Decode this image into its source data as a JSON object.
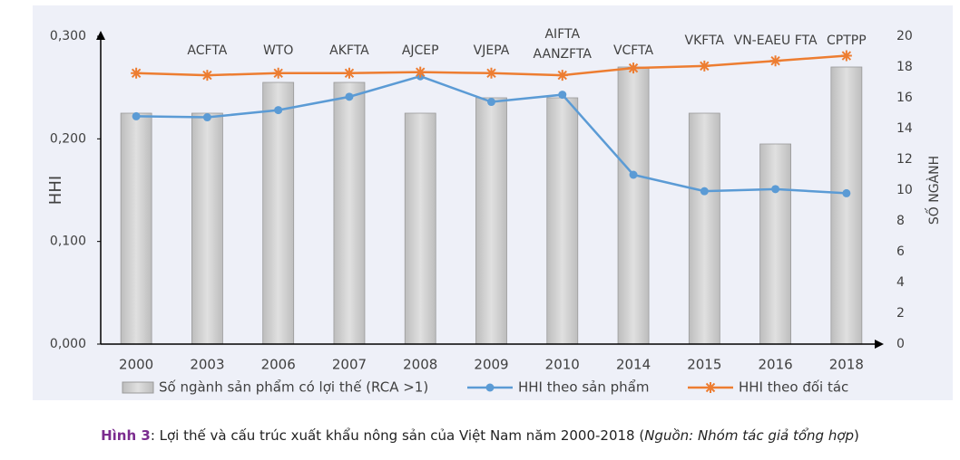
{
  "chart_data": {
    "type": "bar-line",
    "categories": [
      "2000",
      "2003",
      "2006",
      "2007",
      "2008",
      "2009",
      "2010",
      "2014",
      "2015",
      "2016",
      "2018"
    ],
    "series": [
      {
        "name": "Số ngành sản phẩm có lợi thế (RCA >1)",
        "type": "bar",
        "axis": "y2",
        "color": "#c9c9c9",
        "values": [
          15,
          15,
          17,
          17,
          15,
          16,
          16,
          18,
          15,
          13,
          18
        ]
      },
      {
        "name": "HHI theo sản phẩm",
        "type": "line",
        "marker": "circle",
        "color": "#5b9bd5",
        "values": [
          0.222,
          0.221,
          0.228,
          0.241,
          0.261,
          0.236,
          0.243,
          0.165,
          0.149,
          0.151,
          0.147
        ]
      },
      {
        "name": "HHI theo đối tác",
        "type": "line",
        "marker": "star",
        "color": "#ed7d31",
        "values": [
          0.264,
          0.262,
          0.264,
          0.264,
          0.265,
          0.264,
          0.262,
          0.269,
          0.271,
          0.276,
          0.281
        ]
      }
    ],
    "annotations": [
      null,
      "ACFTA",
      "WTO",
      "AKFTA",
      "AJCEP",
      "VJEPA",
      [
        "AIFTA",
        "AANZFTA"
      ],
      "VCFTA",
      "VKFTA",
      "VN-EAEU  FTA",
      "CPTPP"
    ],
    "ylabel": "HHI",
    "y2label": "SỐ NGÀNH",
    "ylim": [
      0,
      0.3
    ],
    "yticks": [
      {
        "value": 0,
        "label": "0,000"
      },
      {
        "value": 0.1,
        "label": "0,100"
      },
      {
        "value": 0.2,
        "label": "0,200"
      },
      {
        "value": 0.3,
        "label": "0,300"
      }
    ],
    "y2lim": [
      0,
      20
    ],
    "y2ticks": [
      0,
      2,
      4,
      6,
      8,
      10,
      12,
      14,
      16,
      18,
      20
    ],
    "legend": "bottom",
    "caption": {
      "label": "Hình 3",
      "text": ": Lợi thế và cấu trúc xuất khẩu nông sản của Việt Nam năm 2000-2018 (",
      "source": "Nguồn:  Nhóm tác giả tổng hợp",
      "end": ")"
    }
  }
}
